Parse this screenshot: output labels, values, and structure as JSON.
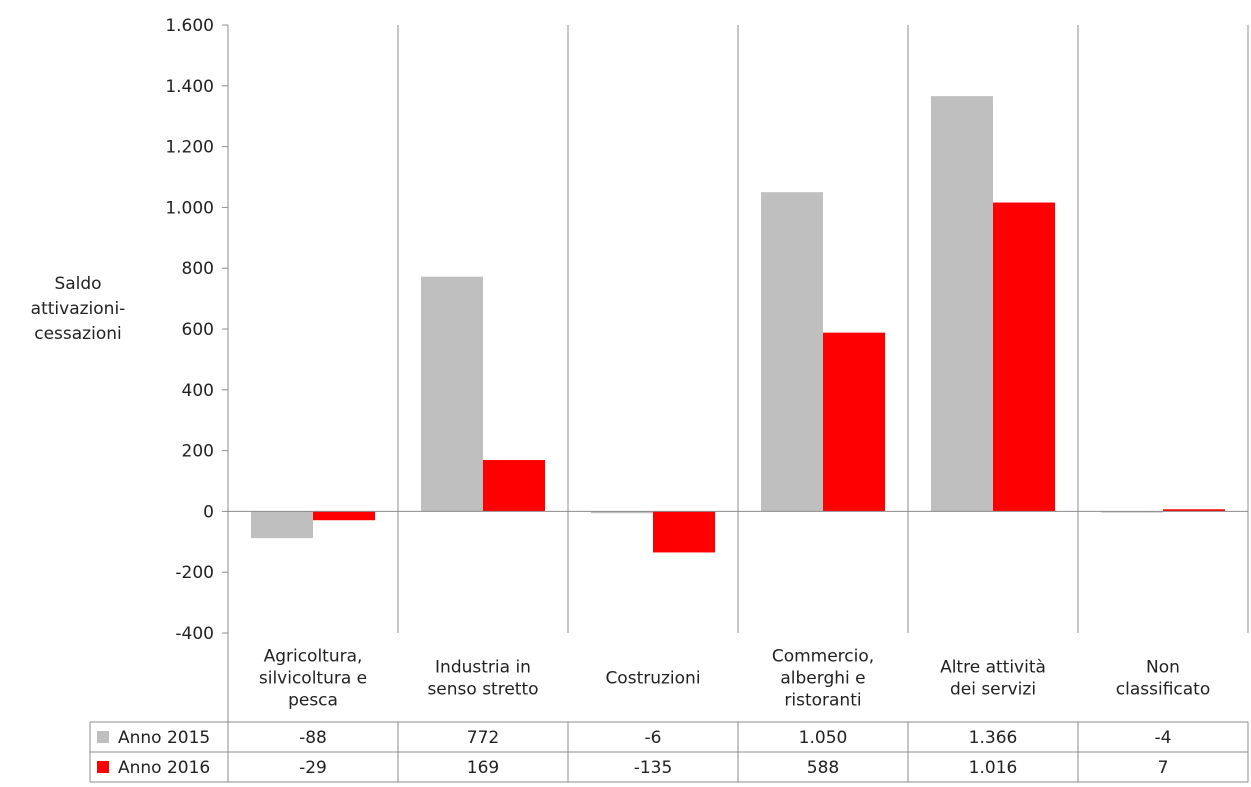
{
  "chart_data": {
    "type": "bar",
    "ylabel_lines": [
      "Saldo",
      "attivazioni-",
      "cessazioni"
    ],
    "ylim": [
      -400,
      1600
    ],
    "yticks": [
      1600,
      1400,
      1200,
      1000,
      800,
      600,
      400,
      200,
      0,
      -200,
      -400
    ],
    "ytick_labels": [
      "1.600",
      "1.400",
      "1.200",
      "1.000",
      "800",
      "600",
      "400",
      "200",
      "0",
      "-200",
      "-400"
    ],
    "grid": "vertical category separators",
    "legend_placement": "data table below chart",
    "categories": [
      [
        "Agricoltura,",
        "silvicoltura e",
        "pesca"
      ],
      [
        "Industria in",
        "senso stretto"
      ],
      [
        "Costruzioni"
      ],
      [
        "Commercio,",
        "alberghi e",
        "ristoranti"
      ],
      [
        "Altre attività",
        "dei servizi"
      ],
      [
        "Non",
        "classificato"
      ]
    ],
    "series": [
      {
        "name": "Anno 2015",
        "color": "#bfbfbf",
        "values": [
          -88,
          772,
          -6,
          1050,
          1366,
          -4
        ],
        "labels": [
          "-88",
          "772",
          "-6",
          "1.050",
          "1.366",
          "-4"
        ]
      },
      {
        "name": "Anno 2016",
        "color": "#ff0000",
        "values": [
          -29,
          169,
          -135,
          588,
          1016,
          7
        ],
        "labels": [
          "-29",
          "169",
          "-135",
          "588",
          "1.016",
          "7"
        ]
      }
    ]
  }
}
